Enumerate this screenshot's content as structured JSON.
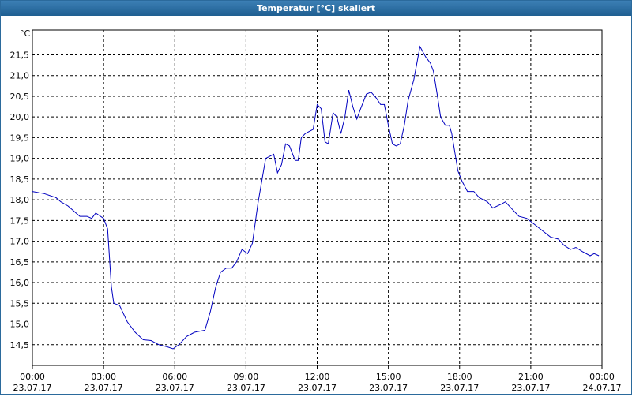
{
  "chart_data": {
    "type": "line",
    "title": "Temperatur [°C] skaliert",
    "y_unit": "°C",
    "xlim": [
      0,
      24
    ],
    "ylim": [
      14.0,
      22.1
    ],
    "xticks": [
      {
        "value": 0,
        "label": "00:00",
        "date": "23.07.17"
      },
      {
        "value": 3,
        "label": "03:00",
        "date": "23.07.17"
      },
      {
        "value": 6,
        "label": "06:00",
        "date": "23.07.17"
      },
      {
        "value": 9,
        "label": "09:00",
        "date": "23.07.17"
      },
      {
        "value": 12,
        "label": "12:00",
        "date": "23.07.17"
      },
      {
        "value": 15,
        "label": "15:00",
        "date": "23.07.17"
      },
      {
        "value": 18,
        "label": "18:00",
        "date": "23.07.17"
      },
      {
        "value": 21,
        "label": "21:00",
        "date": "23.07.17"
      },
      {
        "value": 24,
        "label": "00:00",
        "date": "24.07.17"
      }
    ],
    "yticks": [
      {
        "value": 14.5,
        "label": "14,5"
      },
      {
        "value": 15.0,
        "label": "15,0"
      },
      {
        "value": 15.5,
        "label": "15,5"
      },
      {
        "value": 16.0,
        "label": "16,0"
      },
      {
        "value": 16.5,
        "label": "16,5"
      },
      {
        "value": 17.0,
        "label": "17,0"
      },
      {
        "value": 17.5,
        "label": "17,5"
      },
      {
        "value": 18.0,
        "label": "18,0"
      },
      {
        "value": 18.5,
        "label": "18,5"
      },
      {
        "value": 19.0,
        "label": "19,0"
      },
      {
        "value": 19.5,
        "label": "19,5"
      },
      {
        "value": 20.0,
        "label": "20,0"
      },
      {
        "value": 20.5,
        "label": "20,5"
      },
      {
        "value": 21.0,
        "label": "21,0"
      },
      {
        "value": 21.5,
        "label": "21,5"
      }
    ],
    "grid": true,
    "x": [
      0,
      0.5,
      1.0,
      1.2,
      1.5,
      1.8,
      2.0,
      2.3,
      2.5,
      2.67,
      3.0,
      3.17,
      3.33,
      3.43,
      3.67,
      4.0,
      4.33,
      4.67,
      5.0,
      5.33,
      5.67,
      5.93,
      6.17,
      6.5,
      6.83,
      7.27,
      7.5,
      7.73,
      7.93,
      8.17,
      8.4,
      8.6,
      8.83,
      9.07,
      9.27,
      9.5,
      9.83,
      10.17,
      10.33,
      10.5,
      10.67,
      10.83,
      11.07,
      11.2,
      11.33,
      11.5,
      11.83,
      12.0,
      12.17,
      12.33,
      12.47,
      12.67,
      12.83,
      13.0,
      13.17,
      13.33,
      13.5,
      13.67,
      13.83,
      14.07,
      14.27,
      14.5,
      14.67,
      14.83,
      15.0,
      15.17,
      15.33,
      15.5,
      15.67,
      15.83,
      16.07,
      16.33,
      16.57,
      16.77,
      16.9,
      17.07,
      17.2,
      17.4,
      17.57,
      17.67,
      17.93,
      18.1,
      18.33,
      18.6,
      18.83,
      19.17,
      19.4,
      19.77,
      19.93,
      20.17,
      20.5,
      20.83,
      21.17,
      21.5,
      21.83,
      22.17,
      22.4,
      22.67,
      22.9,
      23.17,
      23.5,
      23.67,
      23.87
    ],
    "series": [
      {
        "color": "#0000c0",
        "values": [
          18.2,
          18.15,
          18.05,
          17.95,
          17.85,
          17.7,
          17.6,
          17.6,
          17.55,
          17.68,
          17.55,
          17.3,
          15.9,
          15.5,
          15.45,
          15.05,
          14.8,
          14.62,
          14.6,
          14.5,
          14.45,
          14.4,
          14.5,
          14.7,
          14.8,
          14.85,
          15.3,
          15.9,
          16.25,
          16.35,
          16.35,
          16.5,
          16.8,
          16.7,
          16.95,
          17.9,
          19.0,
          19.1,
          18.65,
          18.85,
          19.35,
          19.3,
          18.95,
          18.95,
          19.5,
          19.6,
          19.7,
          20.3,
          20.2,
          19.4,
          19.35,
          20.1,
          20.0,
          19.6,
          20.0,
          20.65,
          20.25,
          19.95,
          20.2,
          20.55,
          20.6,
          20.45,
          20.3,
          20.3,
          19.8,
          19.35,
          19.3,
          19.35,
          19.8,
          20.4,
          20.9,
          21.7,
          21.45,
          21.3,
          21.1,
          20.5,
          20.0,
          19.8,
          19.8,
          19.6,
          18.7,
          18.45,
          18.2,
          18.2,
          18.05,
          17.95,
          17.8,
          17.9,
          17.95,
          17.8,
          17.6,
          17.55,
          17.4,
          17.25,
          17.1,
          17.05,
          16.9,
          16.8,
          16.85,
          16.75,
          16.65,
          16.7,
          16.65
        ]
      }
    ]
  }
}
